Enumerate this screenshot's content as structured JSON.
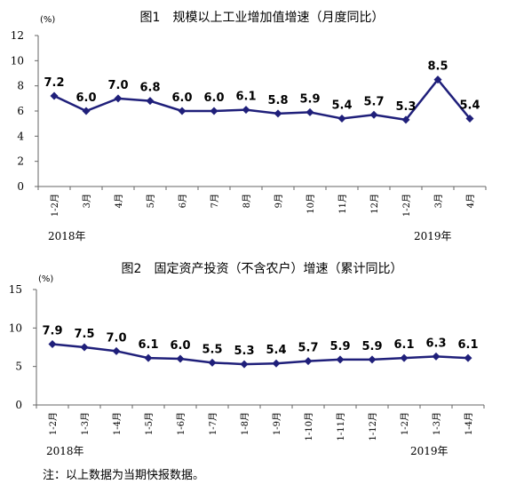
{
  "chart_data": [
    {
      "type": "line",
      "title": "图1　规模以上工业增加值增速（月度同比）",
      "unit": "(%)",
      "categories": [
        "1-2月",
        "3月",
        "4月",
        "5月",
        "6月",
        "7月",
        "8月",
        "9月",
        "10月",
        "11月",
        "12月",
        "1-2月",
        "3月",
        "4月"
      ],
      "year_labels": [
        "2018年",
        "2019年"
      ],
      "values": [
        7.2,
        6.0,
        7.0,
        6.8,
        6.0,
        6.0,
        6.1,
        5.8,
        5.9,
        5.4,
        5.7,
        5.3,
        8.5,
        5.4
      ],
      "data_labels": [
        "7.2",
        "6.0",
        "7.0",
        "6.8",
        "6.0",
        "6.0",
        "6.1",
        "5.8",
        "5.9",
        "5.4",
        "5.7",
        "5.3",
        "8.5",
        "5.4"
      ],
      "ylim": [
        0,
        12
      ],
      "yticks": [
        "0",
        "2",
        "4",
        "6",
        "8",
        "10",
        "12"
      ],
      "grid": false,
      "color": "#1f1f7a"
    },
    {
      "type": "line",
      "title": "图2　固定资产投资（不含农户）增速（累计同比）",
      "unit": "(%)",
      "categories": [
        "1-2月",
        "1-3月",
        "1-4月",
        "1-5月",
        "1-6月",
        "1-7月",
        "1-8月",
        "1-9月",
        "1-10月",
        "1-11月",
        "1-12月",
        "1-2月",
        "1-3月",
        "1-4月"
      ],
      "year_labels": [
        "2018年",
        "2019年"
      ],
      "values": [
        7.9,
        7.5,
        7.0,
        6.1,
        6.0,
        5.5,
        5.3,
        5.4,
        5.7,
        5.9,
        5.9,
        6.1,
        6.3,
        6.1
      ],
      "data_labels": [
        "7.9",
        "7.5",
        "7.0",
        "6.1",
        "6.0",
        "5.5",
        "5.3",
        "5.4",
        "5.7",
        "5.9",
        "5.9",
        "6.1",
        "6.3",
        "6.1"
      ],
      "ylim": [
        0,
        15
      ],
      "yticks": [
        "0",
        "5",
        "10",
        "15"
      ],
      "grid": false,
      "color": "#1f1f7a"
    }
  ],
  "note": "注：以上数据为当期快报数据。"
}
